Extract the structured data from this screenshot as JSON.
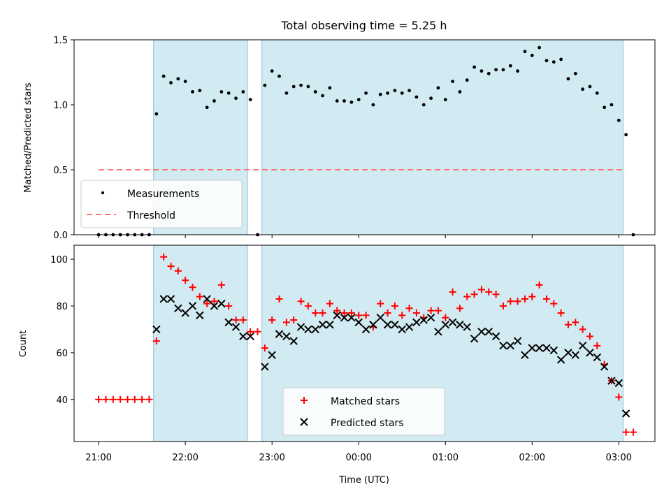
{
  "chart_data": [
    {
      "type": "scatter",
      "title": "Total observing time = 5.25 h",
      "ylabel": "Matched/Predicted stars",
      "ylim": [
        0,
        1.5
      ],
      "yticks": [
        0,
        0.5,
        1.0,
        1.5
      ],
      "ytick_labels": [
        "0.0",
        "0.5",
        "1.0",
        "1.5"
      ],
      "legend": {
        "placement": "lower-left",
        "entries": [
          "Measurements",
          "Threshold"
        ]
      },
      "shaded_intervals": [
        [
          "21:38",
          "22:43"
        ],
        [
          "22:53",
          "03:03"
        ]
      ],
      "series": [
        {
          "name": "Measurements",
          "marker": "dot",
          "color": "#000000",
          "points": [
            [
              "21:00",
              0
            ],
            [
              "21:05",
              0
            ],
            [
              "21:10",
              0
            ],
            [
              "21:15",
              0
            ],
            [
              "21:20",
              0
            ],
            [
              "21:25",
              0
            ],
            [
              "21:30",
              0
            ],
            [
              "21:35",
              0
            ],
            [
              "21:40",
              0.93
            ],
            [
              "21:45",
              1.22
            ],
            [
              "21:50",
              1.17
            ],
            [
              "21:55",
              1.2
            ],
            [
              "22:00",
              1.18
            ],
            [
              "22:05",
              1.1
            ],
            [
              "22:10",
              1.11
            ],
            [
              "22:15",
              0.98
            ],
            [
              "22:20",
              1.03
            ],
            [
              "22:25",
              1.1
            ],
            [
              "22:30",
              1.09
            ],
            [
              "22:35",
              1.05
            ],
            [
              "22:40",
              1.1
            ],
            [
              "22:45",
              1.04
            ],
            [
              "22:50",
              0
            ],
            [
              "22:55",
              1.15
            ],
            [
              "23:00",
              1.26
            ],
            [
              "23:05",
              1.22
            ],
            [
              "23:10",
              1.09
            ],
            [
              "23:15",
              1.14
            ],
            [
              "23:20",
              1.15
            ],
            [
              "23:25",
              1.14
            ],
            [
              "23:30",
              1.1
            ],
            [
              "23:35",
              1.07
            ],
            [
              "23:40",
              1.13
            ],
            [
              "23:45",
              1.03
            ],
            [
              "23:50",
              1.03
            ],
            [
              "23:55",
              1.02
            ],
            [
              "00:00",
              1.04
            ],
            [
              "00:05",
              1.09
            ],
            [
              "00:10",
              1.0
            ],
            [
              "00:15",
              1.08
            ],
            [
              "00:20",
              1.09
            ],
            [
              "00:25",
              1.11
            ],
            [
              "00:30",
              1.09
            ],
            [
              "00:35",
              1.11
            ],
            [
              "00:40",
              1.06
            ],
            [
              "00:45",
              1.0
            ],
            [
              "00:50",
              1.05
            ],
            [
              "00:55",
              1.13
            ],
            [
              "01:00",
              1.04
            ],
            [
              "01:05",
              1.18
            ],
            [
              "01:10",
              1.1
            ],
            [
              "01:15",
              1.19
            ],
            [
              "01:20",
              1.29
            ],
            [
              "01:25",
              1.26
            ],
            [
              "01:30",
              1.24
            ],
            [
              "01:35",
              1.27
            ],
            [
              "01:40",
              1.27
            ],
            [
              "01:45",
              1.3
            ],
            [
              "01:50",
              1.26
            ],
            [
              "01:55",
              1.41
            ],
            [
              "02:00",
              1.38
            ],
            [
              "02:05",
              1.44
            ],
            [
              "02:10",
              1.34
            ],
            [
              "02:15",
              1.33
            ],
            [
              "02:20",
              1.35
            ],
            [
              "02:25",
              1.2
            ],
            [
              "02:30",
              1.24
            ],
            [
              "02:35",
              1.12
            ],
            [
              "02:40",
              1.14
            ],
            [
              "02:45",
              1.09
            ],
            [
              "02:50",
              0.98
            ],
            [
              "02:55",
              1.0
            ],
            [
              "03:00",
              0.88
            ],
            [
              "03:05",
              0.77
            ],
            [
              "03:10",
              0
            ]
          ]
        },
        {
          "name": "Threshold",
          "style": "dashed-line",
          "color": "#f87878",
          "x": [
            "21:00",
            "03:05"
          ],
          "y": [
            0.5,
            0.5
          ]
        }
      ]
    },
    {
      "type": "scatter",
      "xlabel": "Time (UTC)",
      "ylabel": "Count",
      "ylim": [
        22,
        106
      ],
      "yticks": [
        40,
        60,
        80,
        100
      ],
      "ytick_labels": [
        "40",
        "60",
        "80",
        "100"
      ],
      "xticks": [
        "21:00",
        "22:00",
        "23:00",
        "00:00",
        "01:00",
        "02:00",
        "03:00"
      ],
      "xlim": [
        "20:43",
        "03:25"
      ],
      "legend": {
        "placement": "lower-center",
        "entries": [
          "Matched stars",
          "Predicted stars"
        ]
      },
      "shaded_intervals": [
        [
          "21:38",
          "22:43"
        ],
        [
          "22:53",
          "03:03"
        ]
      ],
      "series": [
        {
          "name": "Matched stars",
          "marker": "plus",
          "color": "#ff0000",
          "points": [
            [
              "21:00",
              40
            ],
            [
              "21:05",
              40
            ],
            [
              "21:10",
              40
            ],
            [
              "21:15",
              40
            ],
            [
              "21:20",
              40
            ],
            [
              "21:25",
              40
            ],
            [
              "21:30",
              40
            ],
            [
              "21:35",
              40
            ],
            [
              "21:40",
              65
            ],
            [
              "21:45",
              101
            ],
            [
              "21:50",
              97
            ],
            [
              "21:55",
              95
            ],
            [
              "22:00",
              91
            ],
            [
              "22:05",
              88
            ],
            [
              "22:10",
              84
            ],
            [
              "22:15",
              81
            ],
            [
              "22:20",
              82
            ],
            [
              "22:25",
              89
            ],
            [
              "22:30",
              80
            ],
            [
              "22:35",
              74
            ],
            [
              "22:40",
              74
            ],
            [
              "22:45",
              69
            ],
            [
              "22:50",
              69
            ],
            [
              "22:55",
              62
            ],
            [
              "23:00",
              74
            ],
            [
              "23:05",
              83
            ],
            [
              "23:10",
              73
            ],
            [
              "23:15",
              74
            ],
            [
              "23:20",
              82
            ],
            [
              "23:25",
              80
            ],
            [
              "23:30",
              77
            ],
            [
              "23:35",
              77
            ],
            [
              "23:40",
              81
            ],
            [
              "23:45",
              78
            ],
            [
              "23:50",
              77
            ],
            [
              "23:55",
              77
            ],
            [
              "00:00",
              76
            ],
            [
              "00:05",
              76
            ],
            [
              "00:10",
              71
            ],
            [
              "00:15",
              81
            ],
            [
              "00:20",
              77
            ],
            [
              "00:25",
              80
            ],
            [
              "00:30",
              76
            ],
            [
              "00:35",
              79
            ],
            [
              "00:40",
              77
            ],
            [
              "00:45",
              75
            ],
            [
              "00:50",
              78
            ],
            [
              "00:55",
              78
            ],
            [
              "01:00",
              75
            ],
            [
              "01:05",
              86
            ],
            [
              "01:10",
              79
            ],
            [
              "01:15",
              84
            ],
            [
              "01:20",
              85
            ],
            [
              "01:25",
              87
            ],
            [
              "01:30",
              86
            ],
            [
              "01:35",
              85
            ],
            [
              "01:40",
              80
            ],
            [
              "01:45",
              82
            ],
            [
              "01:50",
              82
            ],
            [
              "01:55",
              83
            ],
            [
              "02:00",
              84
            ],
            [
              "02:05",
              89
            ],
            [
              "02:10",
              83
            ],
            [
              "02:15",
              81
            ],
            [
              "02:20",
              77
            ],
            [
              "02:25",
              72
            ],
            [
              "02:30",
              73
            ],
            [
              "02:35",
              70
            ],
            [
              "02:40",
              67
            ],
            [
              "02:45",
              63
            ],
            [
              "02:50",
              55
            ],
            [
              "02:55",
              48
            ],
            [
              "03:00",
              41
            ],
            [
              "03:05",
              26
            ],
            [
              "03:10",
              26
            ]
          ]
        },
        {
          "name": "Predicted stars",
          "marker": "x",
          "color": "#000000",
          "points": [
            [
              "21:40",
              70
            ],
            [
              "21:45",
              83
            ],
            [
              "21:50",
              83
            ],
            [
              "21:55",
              79
            ],
            [
              "22:00",
              77
            ],
            [
              "22:05",
              80
            ],
            [
              "22:10",
              76
            ],
            [
              "22:15",
              83
            ],
            [
              "22:20",
              80
            ],
            [
              "22:25",
              81
            ],
            [
              "22:30",
              73
            ],
            [
              "22:35",
              71
            ],
            [
              "22:40",
              67
            ],
            [
              "22:45",
              67
            ],
            [
              "22:55",
              54
            ],
            [
              "23:00",
              59
            ],
            [
              "23:05",
              68
            ],
            [
              "23:10",
              67
            ],
            [
              "23:15",
              65
            ],
            [
              "23:20",
              71
            ],
            [
              "23:25",
              70
            ],
            [
              "23:30",
              70
            ],
            [
              "23:35",
              72
            ],
            [
              "23:40",
              72
            ],
            [
              "23:45",
              76
            ],
            [
              "23:50",
              75
            ],
            [
              "23:55",
              75
            ],
            [
              "00:00",
              73
            ],
            [
              "00:05",
              70
            ],
            [
              "00:10",
              72
            ],
            [
              "00:15",
              75
            ],
            [
              "00:20",
              72
            ],
            [
              "00:25",
              72
            ],
            [
              "00:30",
              70
            ],
            [
              "00:35",
              71
            ],
            [
              "00:40",
              73
            ],
            [
              "00:45",
              74
            ],
            [
              "00:50",
              75
            ],
            [
              "00:55",
              69
            ],
            [
              "01:00",
              72
            ],
            [
              "01:05",
              73
            ],
            [
              "01:10",
              72
            ],
            [
              "01:15",
              71
            ],
            [
              "01:20",
              66
            ],
            [
              "01:25",
              69
            ],
            [
              "01:30",
              69
            ],
            [
              "01:35",
              67
            ],
            [
              "01:40",
              63
            ],
            [
              "01:45",
              63
            ],
            [
              "01:50",
              65
            ],
            [
              "01:55",
              59
            ],
            [
              "02:00",
              62
            ],
            [
              "02:05",
              62
            ],
            [
              "02:10",
              62
            ],
            [
              "02:15",
              61
            ],
            [
              "02:20",
              57
            ],
            [
              "02:25",
              60
            ],
            [
              "02:30",
              59
            ],
            [
              "02:35",
              63
            ],
            [
              "02:40",
              60
            ],
            [
              "02:45",
              58
            ],
            [
              "02:50",
              54
            ],
            [
              "02:55",
              48
            ],
            [
              "03:00",
              47
            ],
            [
              "03:05",
              34
            ]
          ]
        }
      ]
    }
  ]
}
